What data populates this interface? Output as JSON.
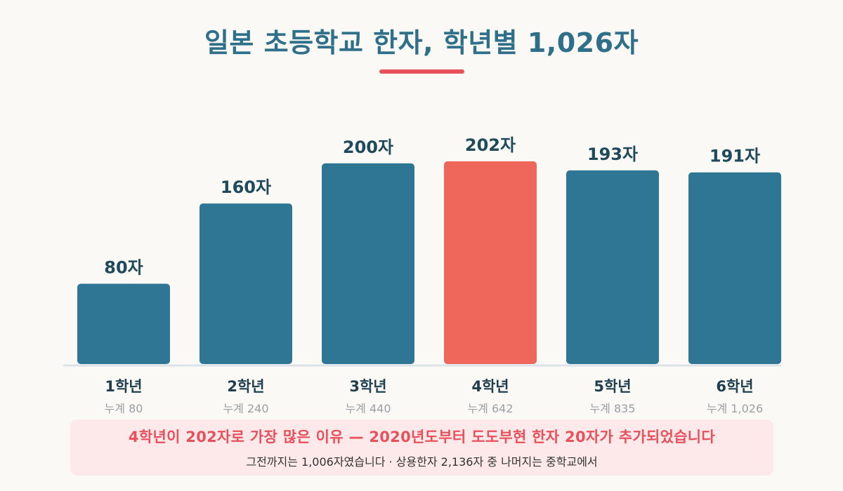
{
  "title": "일본 초등학교 한자, 학년별 1,026자",
  "colors": {
    "bar": "#2e7693",
    "highlight": "#ef665b",
    "accent": "#e8505b",
    "title": "#2e6f8a",
    "note_bg": "#fde9ea"
  },
  "chart_data": {
    "type": "bar",
    "title": "일본 초등학교 한자, 학년별 1,026자",
    "categories": [
      "1학년",
      "2학년",
      "3학년",
      "4학년",
      "5학년",
      "6학년"
    ],
    "values": [
      80,
      160,
      200,
      202,
      193,
      191
    ],
    "value_labels": [
      "80자",
      "160자",
      "200자",
      "202자",
      "193자",
      "191자"
    ],
    "cumulative_labels": [
      "누계 80",
      "누계 240",
      "누계 440",
      "누계 642",
      "누계 835",
      "누계 1,026"
    ],
    "highlight_index": 3,
    "ylim": [
      0,
      202
    ],
    "grid": false,
    "legend": "none"
  },
  "note": {
    "main": "4학년이 202자로 가장 많은 이유 — 2020년도부터 도도부현 한자 20자가 추가되었습니다",
    "sub": "그전까지는 1,006자였습니다 · 상용한자 2,136자 중 나머지는 중학교에서"
  }
}
